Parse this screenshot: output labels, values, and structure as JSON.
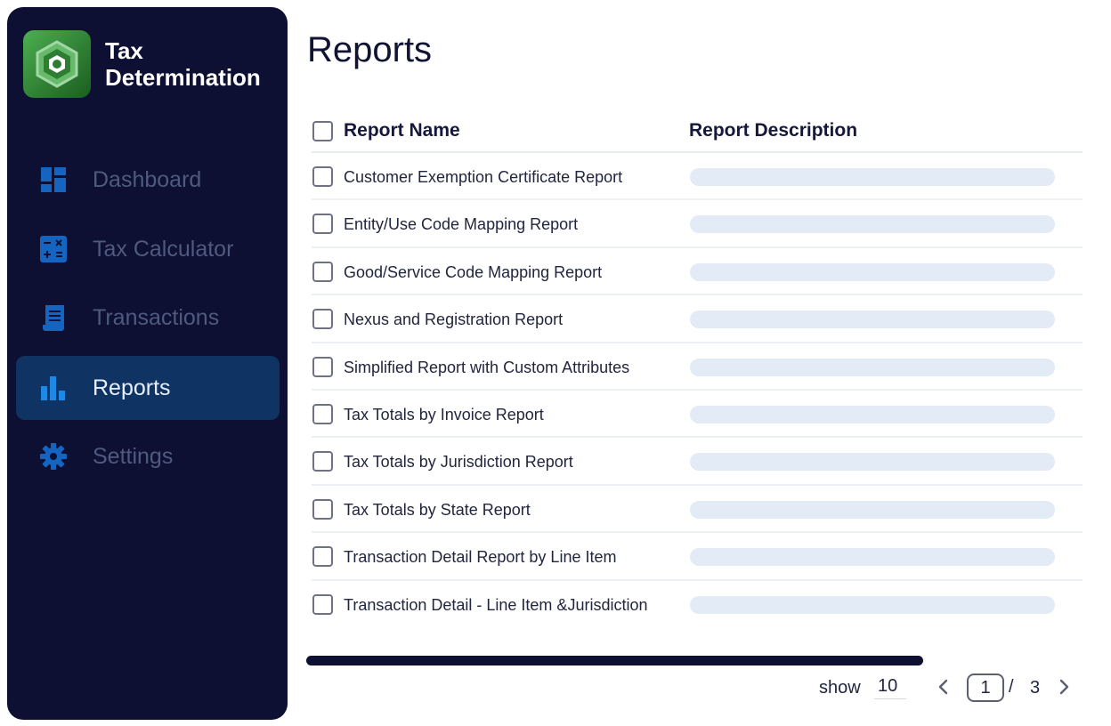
{
  "brand": {
    "line1": "Tax",
    "line2": "Determination"
  },
  "nav": [
    {
      "label": "Dashboard",
      "icon": "dashboard-icon"
    },
    {
      "label": "Tax Calculator",
      "icon": "calculator-icon"
    },
    {
      "label": "Transactions",
      "icon": "receipt-icon"
    },
    {
      "label": "Reports",
      "icon": "bar-chart-icon",
      "active": true
    },
    {
      "label": "Settings",
      "icon": "gear-icon"
    }
  ],
  "page": {
    "title": "Reports"
  },
  "table": {
    "headers": {
      "name": "Report Name",
      "description": "Report Description"
    },
    "rows": [
      {
        "name": "Customer Exemption Certificate Report"
      },
      {
        "name": "Entity/Use Code Mapping Report"
      },
      {
        "name": "Good/Service Code Mapping Report"
      },
      {
        "name": "Nexus and Registration Report"
      },
      {
        "name": "Simplified Report with Custom Attributes"
      },
      {
        "name": "Tax Totals by Invoice Report"
      },
      {
        "name": "Tax Totals by Jurisdiction Report"
      },
      {
        "name": "Tax Totals by State Report"
      },
      {
        "name": "Transaction Detail Report by Line Item"
      },
      {
        "name": "Transaction Detail - Line Item &Jurisdiction"
      }
    ]
  },
  "pagination": {
    "show_label": "show",
    "page_size": "10",
    "current_page": "1",
    "separator": "/",
    "total_pages": "3"
  },
  "colors": {
    "sidebar_bg": "#0d0f33",
    "active_nav_bg": "#0f3464",
    "icon_blue": "#1565c0",
    "placeholder_bar": "#e2ebf6"
  }
}
